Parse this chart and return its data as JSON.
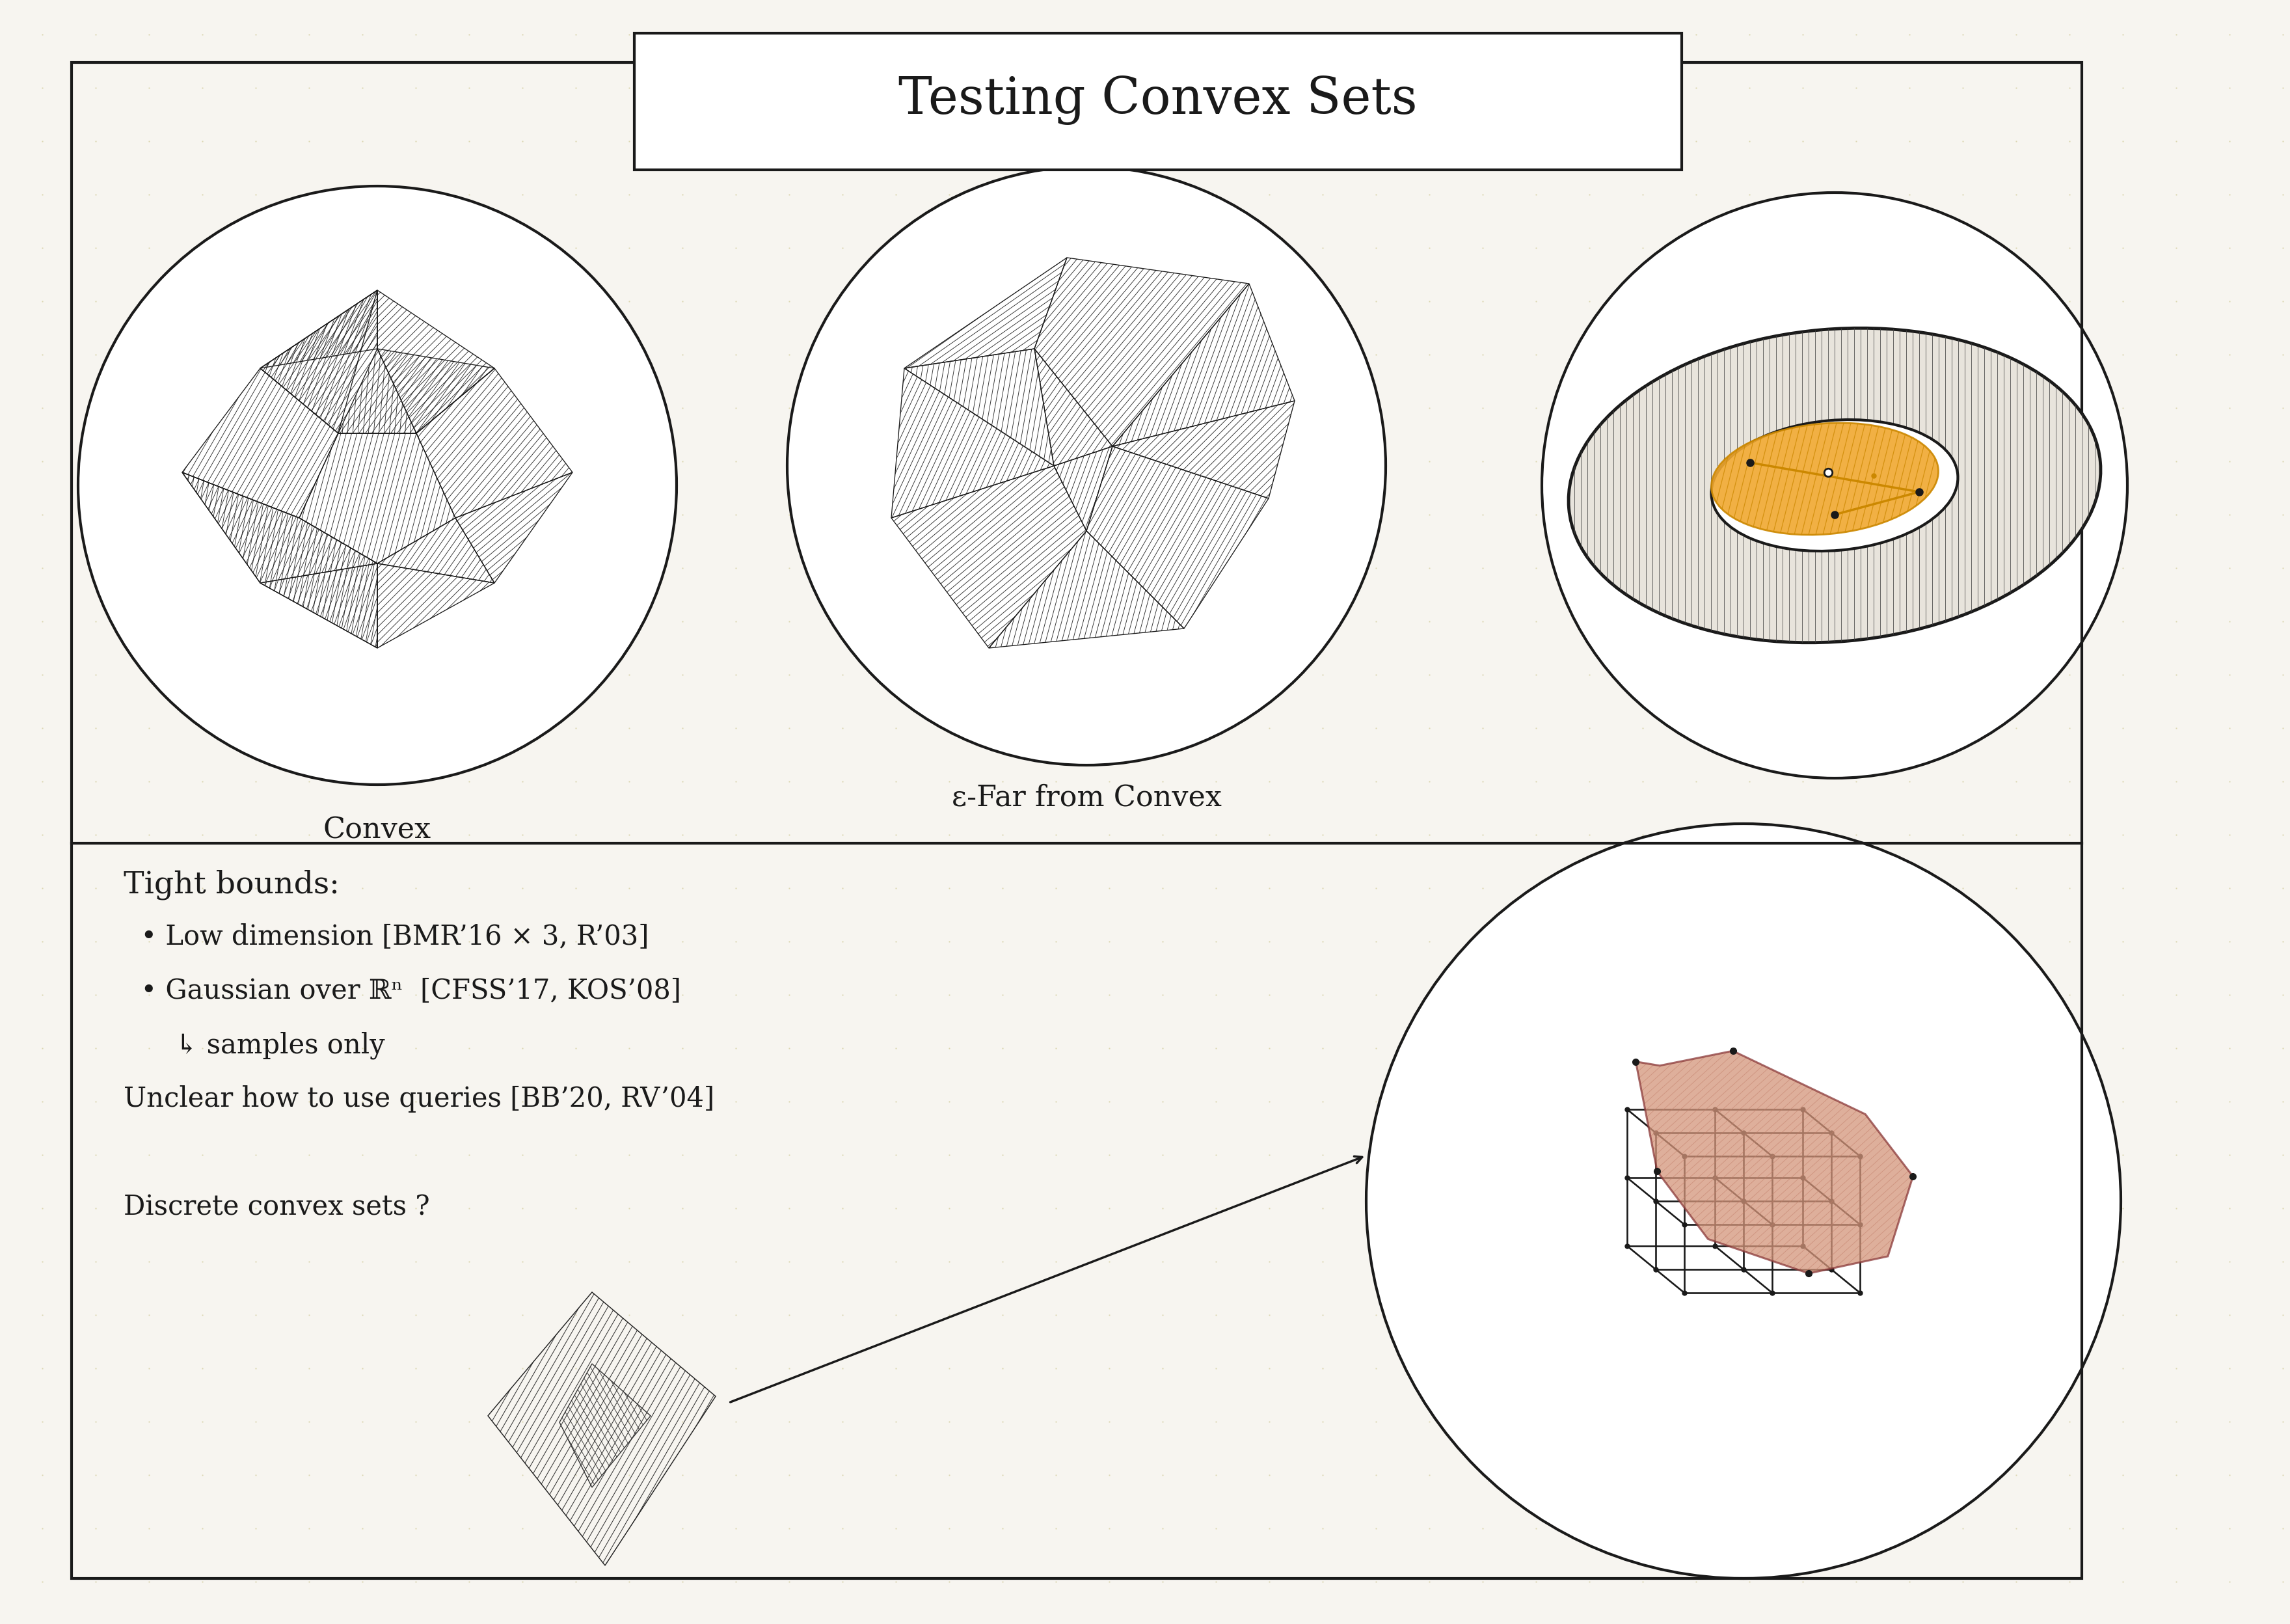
{
  "title": "Testing Convex Sets",
  "bg_color": "#f7f5f0",
  "outline_color": "#1a1a1a",
  "orange_color": "#cc8800",
  "salmon_color": "#d4957a",
  "title_fontsize": 56,
  "label_fontsize": 32,
  "body_fontsize": 30,
  "convex_label": "Convex",
  "far_label": "ε-Far from Convex",
  "text_lines": [
    "Tight bounds:",
    "  • Low dimension [BMR’16 × 3, R’03]",
    "  • Gaussian over ℝⁿ  [CFSS’17, KOS’08]",
    "      ↳ samples only",
    "Unclear how to use queries [BB’20, RV’04]",
    "",
    "Discrete convex sets ?"
  ]
}
